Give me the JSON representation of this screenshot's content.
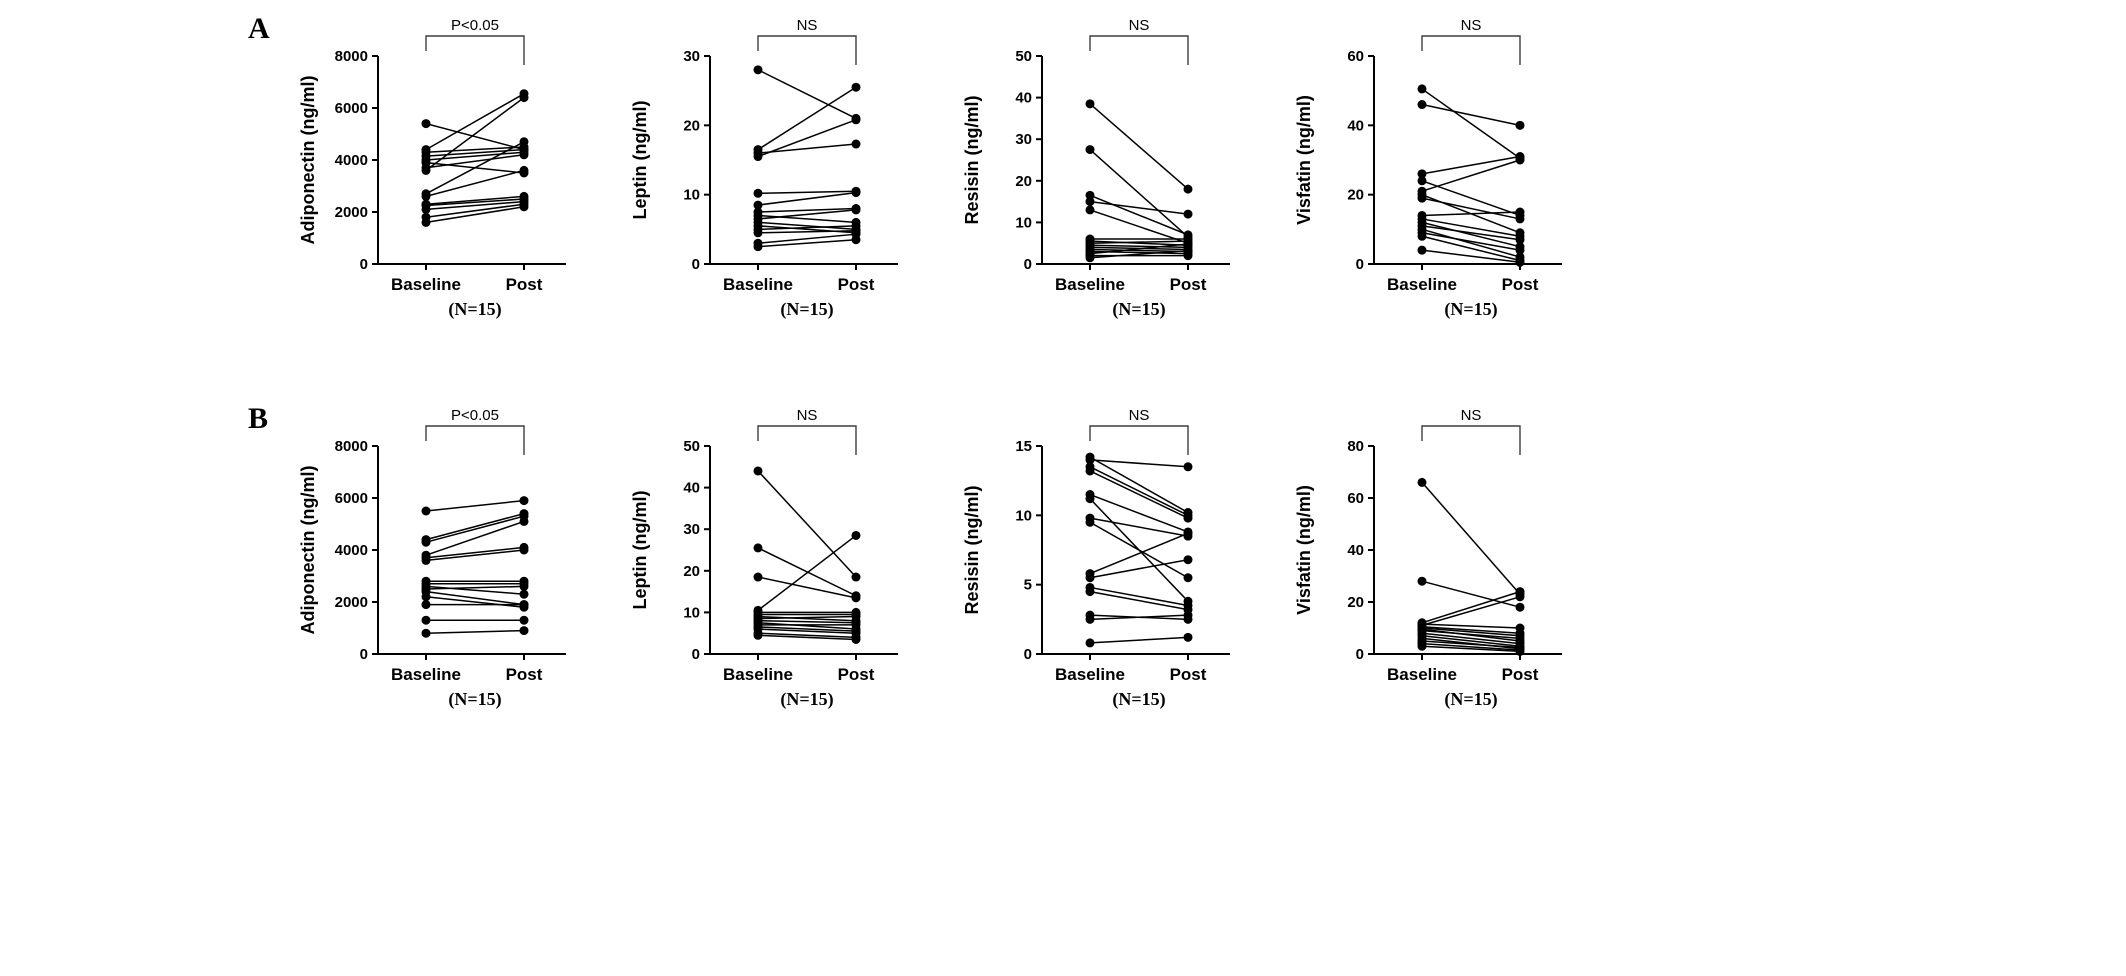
{
  "figure": {
    "panel_labels": [
      "A",
      "B"
    ],
    "x_categories": [
      "Baseline",
      "Post"
    ],
    "n_label": "(N=15)",
    "colors": {
      "data": "#000000",
      "axis": "#000000",
      "significance": "#3d3d3d",
      "background": "#ffffff"
    }
  },
  "chart_data": [
    {
      "id": "adiponectin-a",
      "panel": "A",
      "type": "line",
      "ylabel": "Adiponectin (ng/ml)",
      "categories": [
        "Baseline",
        "Post"
      ],
      "n_label": "(N=15)",
      "significance": "P<0.05",
      "ylim": [
        0,
        8000
      ],
      "yticks": [
        0,
        2000,
        4000,
        6000,
        8000
      ],
      "pairs": [
        [
          5400,
          4400
        ],
        [
          4400,
          6550
        ],
        [
          4300,
          4500
        ],
        [
          4150,
          4400
        ],
        [
          4000,
          4300
        ],
        [
          3900,
          3500
        ],
        [
          3700,
          4200
        ],
        [
          3600,
          6400
        ],
        [
          2700,
          4700
        ],
        [
          2600,
          3600
        ],
        [
          2300,
          2600
        ],
        [
          2250,
          2500
        ],
        [
          2100,
          2400
        ],
        [
          1800,
          2300
        ],
        [
          1600,
          2200
        ]
      ]
    },
    {
      "id": "leptin-a",
      "panel": "A",
      "type": "line",
      "ylabel": "Leptin (ng/ml)",
      "categories": [
        "Baseline",
        "Post"
      ],
      "n_label": "(N=15)",
      "significance": "NS",
      "ylim": [
        0,
        30
      ],
      "yticks": [
        0,
        10,
        20,
        30
      ],
      "pairs": [
        [
          28,
          21
        ],
        [
          16.5,
          25.5
        ],
        [
          16,
          17.3
        ],
        [
          15.5,
          20.8
        ],
        [
          10.2,
          10.5
        ],
        [
          8.5,
          10.3
        ],
        [
          7.5,
          8
        ],
        [
          7,
          6
        ],
        [
          6.5,
          7.8
        ],
        [
          6,
          5
        ],
        [
          5.5,
          4.5
        ],
        [
          5,
          5.5
        ],
        [
          4.5,
          4.8
        ],
        [
          3,
          4.3
        ],
        [
          2.5,
          3.5
        ]
      ]
    },
    {
      "id": "resisin-a",
      "panel": "A",
      "type": "line",
      "ylabel": "Resisin (ng/ml)",
      "categories": [
        "Baseline",
        "Post"
      ],
      "n_label": "(N=15)",
      "significance": "NS",
      "ylim": [
        0,
        50
      ],
      "yticks": [
        0,
        10,
        20,
        30,
        40,
        50
      ],
      "pairs": [
        [
          38.5,
          18
        ],
        [
          27.5,
          6.5
        ],
        [
          16.5,
          7
        ],
        [
          15,
          12
        ],
        [
          13,
          5
        ],
        [
          6,
          6
        ],
        [
          5.5,
          4.5
        ],
        [
          5,
          5.5
        ],
        [
          4.5,
          4
        ],
        [
          4,
          3.5
        ],
        [
          3.5,
          3
        ],
        [
          3,
          2.5
        ],
        [
          2.5,
          4.8
        ],
        [
          2,
          2
        ],
        [
          1.5,
          3.2
        ]
      ]
    },
    {
      "id": "visfatin-a",
      "panel": "A",
      "type": "line",
      "ylabel": "Visfatin (ng/ml)",
      "categories": [
        "Baseline",
        "Post"
      ],
      "n_label": "(N=15)",
      "significance": "NS",
      "ylim": [
        0,
        60
      ],
      "yticks": [
        0,
        20,
        40,
        60
      ],
      "pairs": [
        [
          50.5,
          30.5
        ],
        [
          46,
          40
        ],
        [
          26,
          31
        ],
        [
          24,
          14
        ],
        [
          21,
          30
        ],
        [
          20,
          9
        ],
        [
          19,
          13
        ],
        [
          14,
          15
        ],
        [
          13,
          8
        ],
        [
          12,
          5
        ],
        [
          11,
          7
        ],
        [
          10,
          2
        ],
        [
          9,
          4
        ],
        [
          8,
          1
        ],
        [
          4,
          0.5
        ]
      ]
    },
    {
      "id": "adiponectin-b",
      "panel": "B",
      "type": "line",
      "ylabel": "Adiponectin (ng/ml)",
      "categories": [
        "Baseline",
        "Post"
      ],
      "n_label": "(N=15)",
      "significance": "P<0.05",
      "ylim": [
        0,
        8000
      ],
      "yticks": [
        0,
        2000,
        4000,
        6000,
        8000
      ],
      "pairs": [
        [
          5500,
          5900
        ],
        [
          4400,
          5400
        ],
        [
          4300,
          5300
        ],
        [
          3800,
          5100
        ],
        [
          3700,
          4100
        ],
        [
          3600,
          4000
        ],
        [
          2800,
          2800
        ],
        [
          2700,
          2700
        ],
        [
          2600,
          2300
        ],
        [
          2500,
          2600
        ],
        [
          2400,
          1900
        ],
        [
          2200,
          1800
        ],
        [
          1900,
          1900
        ],
        [
          1300,
          1300
        ],
        [
          800,
          900
        ]
      ]
    },
    {
      "id": "leptin-b",
      "panel": "B",
      "type": "line",
      "ylabel": "Leptin (ng/ml)",
      "categories": [
        "Baseline",
        "Post"
      ],
      "n_label": "(N=15)",
      "significance": "NS",
      "ylim": [
        0,
        50
      ],
      "yticks": [
        0,
        10,
        20,
        30,
        40,
        50
      ],
      "pairs": [
        [
          44,
          18.5
        ],
        [
          25.5,
          14
        ],
        [
          18.5,
          13.5
        ],
        [
          10.5,
          28.5
        ],
        [
          10,
          10
        ],
        [
          9.5,
          9.5
        ],
        [
          9,
          8
        ],
        [
          8.5,
          9
        ],
        [
          8,
          7.5
        ],
        [
          7.5,
          6
        ],
        [
          7,
          7
        ],
        [
          6.5,
          5.5
        ],
        [
          6,
          5
        ],
        [
          5,
          4
        ],
        [
          4.5,
          3.5
        ]
      ]
    },
    {
      "id": "resisin-b",
      "panel": "B",
      "type": "line",
      "ylabel": "Resisin (ng/ml)",
      "categories": [
        "Baseline",
        "Post"
      ],
      "n_label": "(N=15)",
      "significance": "NS",
      "ylim": [
        0,
        15
      ],
      "yticks": [
        0,
        5,
        10,
        15
      ],
      "pairs": [
        [
          14.2,
          10.2
        ],
        [
          14,
          13.5
        ],
        [
          13.5,
          10
        ],
        [
          13.2,
          9.8
        ],
        [
          11.5,
          8.8
        ],
        [
          11.2,
          3.8
        ],
        [
          9.8,
          8.5
        ],
        [
          9.5,
          5.5
        ],
        [
          5.8,
          8.7
        ],
        [
          5.5,
          6.8
        ],
        [
          4.8,
          3.5
        ],
        [
          4.5,
          3.2
        ],
        [
          2.8,
          2.5
        ],
        [
          2.5,
          2.8
        ],
        [
          0.8,
          1.2
        ]
      ]
    },
    {
      "id": "visfatin-b",
      "panel": "B",
      "type": "line",
      "ylabel": "Visfatin (ng/ml)",
      "categories": [
        "Baseline",
        "Post"
      ],
      "n_label": "(N=15)",
      "significance": "NS",
      "ylim": [
        0,
        80
      ],
      "yticks": [
        0,
        20,
        40,
        60,
        80
      ],
      "pairs": [
        [
          66,
          23
        ],
        [
          28,
          18
        ],
        [
          12,
          24
        ],
        [
          11.5,
          10
        ],
        [
          11,
          22
        ],
        [
          10.5,
          8
        ],
        [
          10,
          7
        ],
        [
          9.5,
          5
        ],
        [
          9,
          6
        ],
        [
          8,
          4
        ],
        [
          7,
          3
        ],
        [
          6,
          2
        ],
        [
          5,
          2.5
        ],
        [
          4,
          1.5
        ],
        [
          3,
          1
        ]
      ]
    }
  ]
}
